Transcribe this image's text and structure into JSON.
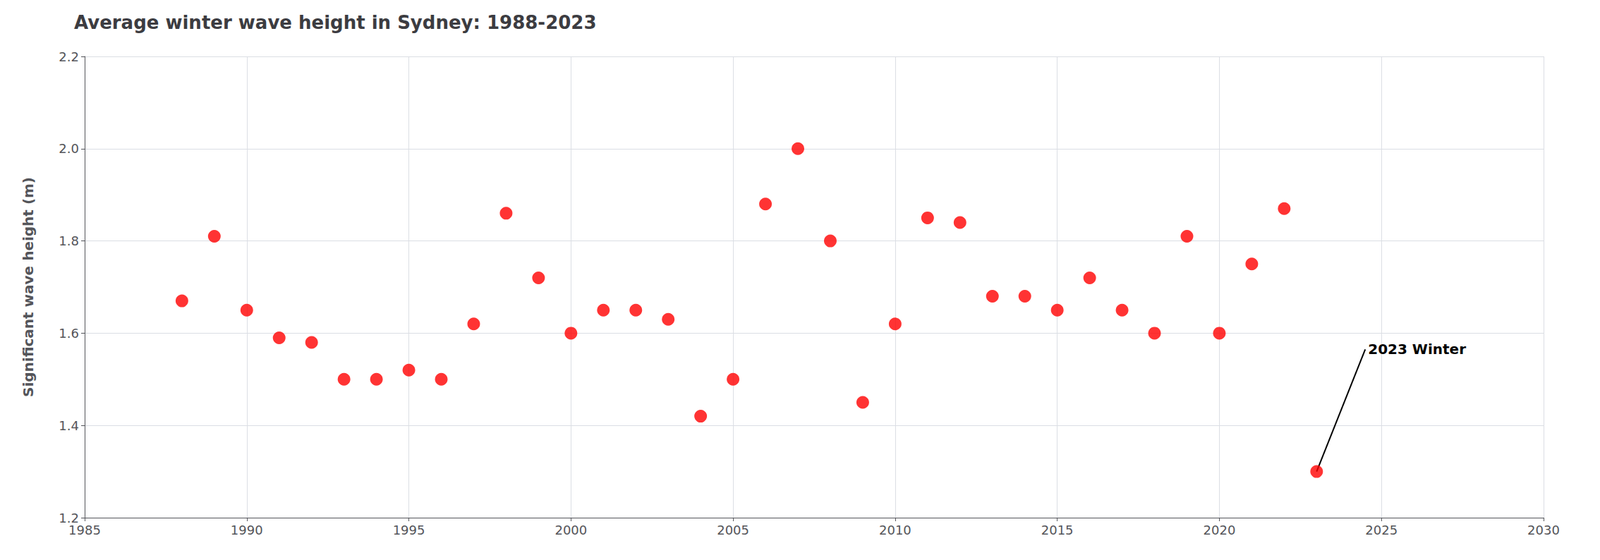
{
  "chart_data": {
    "type": "scatter",
    "title": "Average winter wave height in Sydney: 1988-2023",
    "ylabel": "Significant wave height (m)",
    "x": [
      1988,
      1989,
      1990,
      1991,
      1992,
      1993,
      1994,
      1995,
      1996,
      1997,
      1998,
      1999,
      2000,
      2001,
      2002,
      2003,
      2004,
      2005,
      2006,
      2007,
      2008,
      2009,
      2010,
      2011,
      2012,
      2013,
      2014,
      2015,
      2016,
      2017,
      2018,
      2019,
      2020,
      2021,
      2022,
      2023
    ],
    "values": [
      1.67,
      1.81,
      1.65,
      1.59,
      1.58,
      1.5,
      1.5,
      1.52,
      1.5,
      1.62,
      1.86,
      1.72,
      1.6,
      1.65,
      1.65,
      1.63,
      1.42,
      1.5,
      1.88,
      2.0,
      1.8,
      1.45,
      1.62,
      1.85,
      1.84,
      1.68,
      1.68,
      1.65,
      1.72,
      1.65,
      1.6,
      1.81,
      1.6,
      1.75,
      1.87,
      1.3
    ],
    "color": "#ff0000",
    "xlim": [
      1985,
      2030
    ],
    "ylim": [
      1.2,
      2.2
    ],
    "xticks": [
      1985,
      1990,
      1995,
      2000,
      2005,
      2010,
      2015,
      2020,
      2025,
      2030
    ],
    "yticks": [
      1.2,
      1.4,
      1.6,
      1.8,
      {
        "value": 2.0,
        "label": "2.0"
      },
      2.2
    ],
    "grid": true,
    "annotations": [
      {
        "text": "2023 Winter",
        "x": 2023,
        "y": 1.3,
        "text_x": 2024.5,
        "text_y": 1.565
      }
    ]
  }
}
